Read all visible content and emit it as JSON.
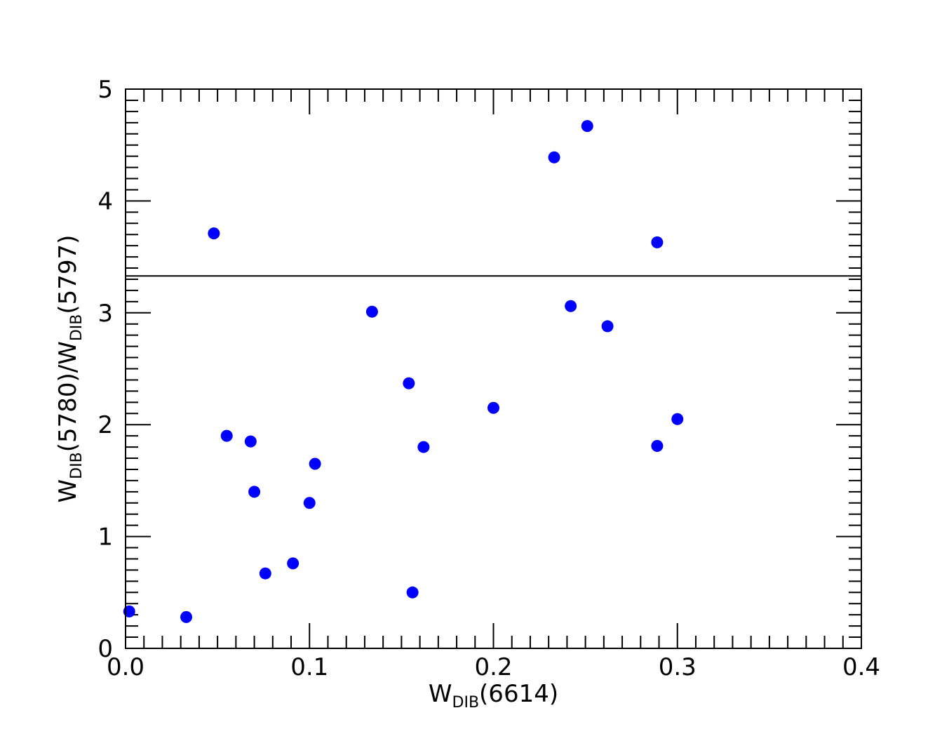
{
  "chart_data": {
    "type": "scatter",
    "xlabel": {
      "main": "W",
      "sub": "DIB",
      "rest": "(6614)"
    },
    "ylabel": {
      "main": "W",
      "sub": "DIB",
      "mid": "(5780)/W",
      "sub2": "DIB",
      "rest": "(5797)"
    },
    "xlim": [
      0.0,
      0.4
    ],
    "ylim": [
      0,
      5
    ],
    "xticks": [
      "0.0",
      "0.1",
      "0.2",
      "0.3",
      "0.4"
    ],
    "yticks": [
      "0",
      "1",
      "2",
      "3",
      "4",
      "5"
    ],
    "reference_line_y": 3.33,
    "marker_color": "#0000ff",
    "points": [
      {
        "x": 0.002,
        "y": 0.33
      },
      {
        "x": 0.033,
        "y": 0.28
      },
      {
        "x": 0.048,
        "y": 3.71
      },
      {
        "x": 0.055,
        "y": 1.9
      },
      {
        "x": 0.068,
        "y": 1.85
      },
      {
        "x": 0.07,
        "y": 1.4
      },
      {
        "x": 0.076,
        "y": 0.67
      },
      {
        "x": 0.091,
        "y": 0.76
      },
      {
        "x": 0.1,
        "y": 1.3
      },
      {
        "x": 0.103,
        "y": 1.65
      },
      {
        "x": 0.134,
        "y": 3.01
      },
      {
        "x": 0.154,
        "y": 2.37
      },
      {
        "x": 0.156,
        "y": 0.5
      },
      {
        "x": 0.162,
        "y": 1.8
      },
      {
        "x": 0.2,
        "y": 2.15
      },
      {
        "x": 0.233,
        "y": 4.39
      },
      {
        "x": 0.242,
        "y": 3.06
      },
      {
        "x": 0.251,
        "y": 4.67
      },
      {
        "x": 0.262,
        "y": 2.88
      },
      {
        "x": 0.289,
        "y": 3.63
      },
      {
        "x": 0.289,
        "y": 1.81
      },
      {
        "x": 0.3,
        "y": 2.05
      }
    ]
  }
}
